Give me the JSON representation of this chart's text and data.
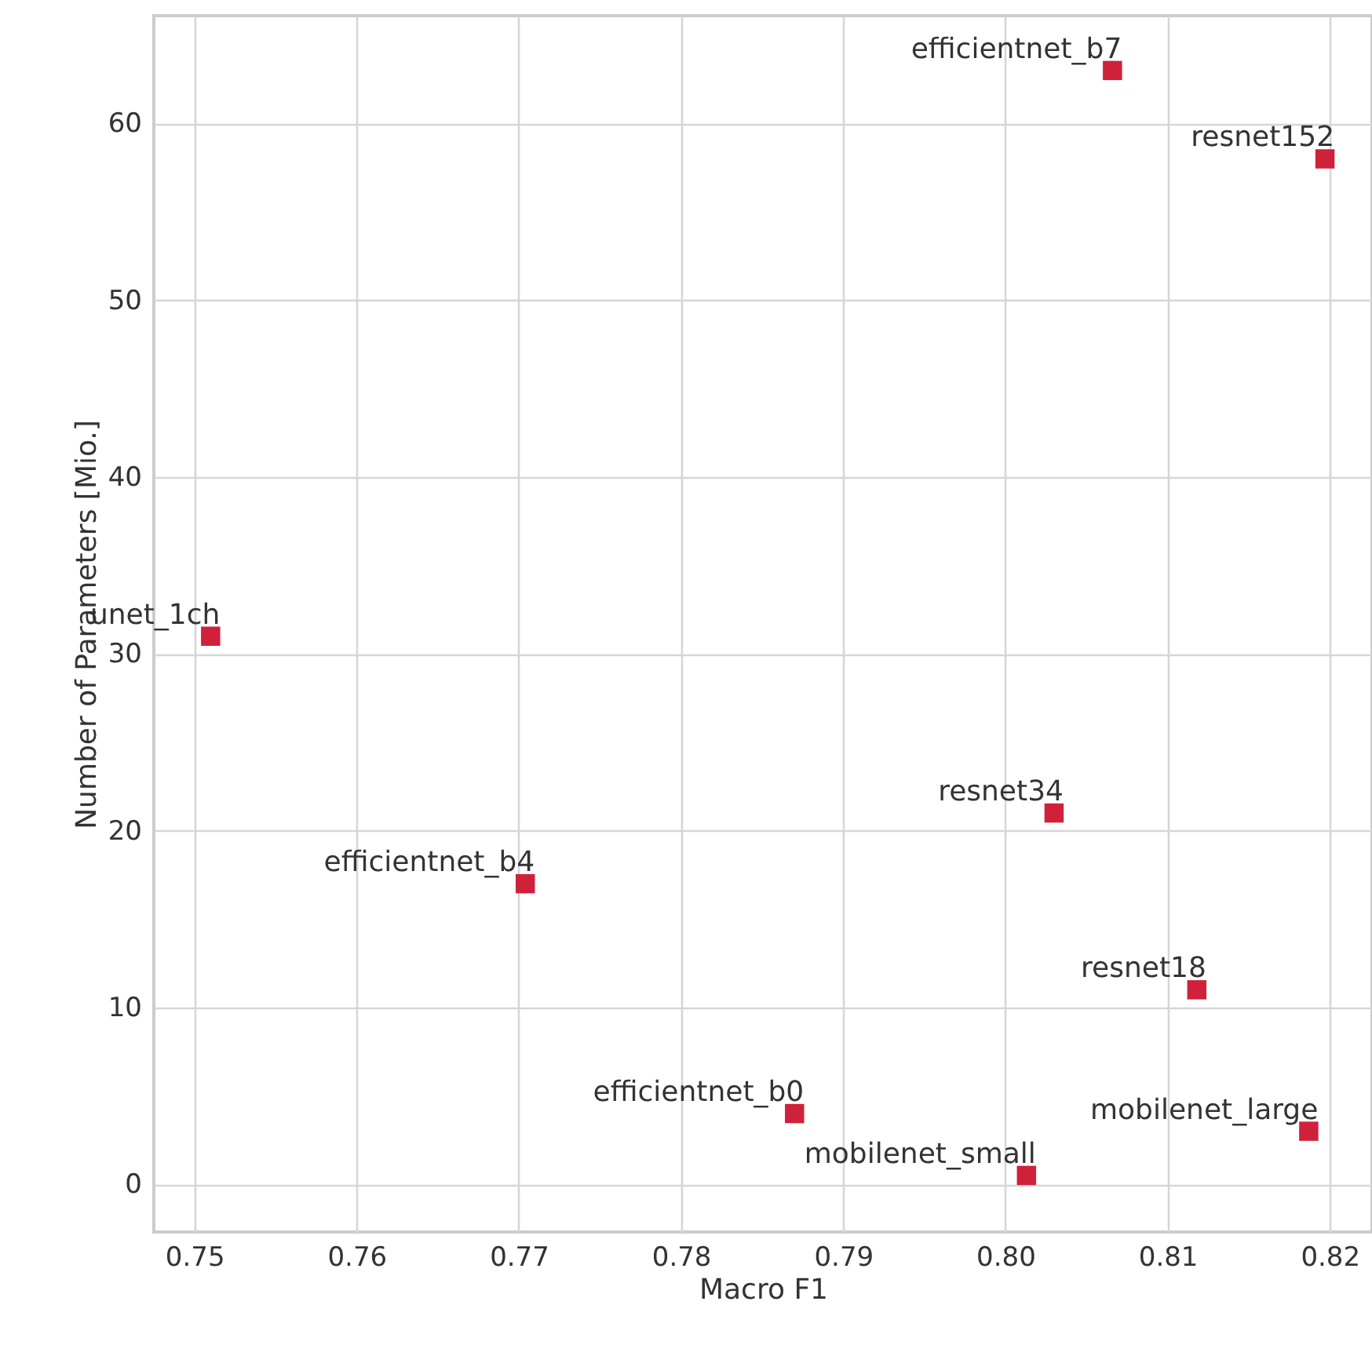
{
  "chart_data": {
    "type": "scatter",
    "xlabel": "Macro F1",
    "ylabel": "Number of Parameters [Mio.]",
    "x": [
      0.751,
      0.7704,
      0.787,
      0.8013,
      0.803,
      0.8066,
      0.8118,
      0.8187,
      0.8197
    ],
    "series": [
      {
        "color": "#d0213b",
        "values": [
          31,
          17,
          4,
          0.5,
          21,
          63,
          11,
          3,
          58
        ]
      }
    ],
    "annotations": [
      {
        "text": "unet_1ch",
        "x": 0.751,
        "y": 31
      },
      {
        "text": "efficientnet_b4",
        "x": 0.7704,
        "y": 17
      },
      {
        "text": "efficientnet_b0",
        "x": 0.787,
        "y": 4
      },
      {
        "text": "mobilenet_small",
        "x": 0.8013,
        "y": 0.5
      },
      {
        "text": "resnet34",
        "x": 0.803,
        "y": 21
      },
      {
        "text": "efficientnet_b7",
        "x": 0.8066,
        "y": 63
      },
      {
        "text": "resnet18",
        "x": 0.8118,
        "y": 11
      },
      {
        "text": "mobilenet_large",
        "x": 0.8187,
        "y": 3
      },
      {
        "text": "resnet152",
        "x": 0.8197,
        "y": 58
      }
    ],
    "xlim": [
      0.7475,
      0.8226
    ],
    "ylim": [
      -2.7,
      66.1
    ],
    "xticks": [
      {
        "value": 0.75,
        "label": "0.75"
      },
      {
        "value": 0.76,
        "label": "0.76"
      },
      {
        "value": 0.77,
        "label": "0.77"
      },
      {
        "value": 0.78,
        "label": "0.78"
      },
      {
        "value": 0.79,
        "label": "0.79"
      },
      {
        "value": 0.8,
        "label": "0.80"
      },
      {
        "value": 0.81,
        "label": "0.81"
      },
      {
        "value": 0.82,
        "label": "0.82"
      }
    ],
    "yticks": [
      0,
      10,
      20,
      30,
      40,
      50,
      60
    ],
    "grid": true,
    "marker": "square"
  }
}
